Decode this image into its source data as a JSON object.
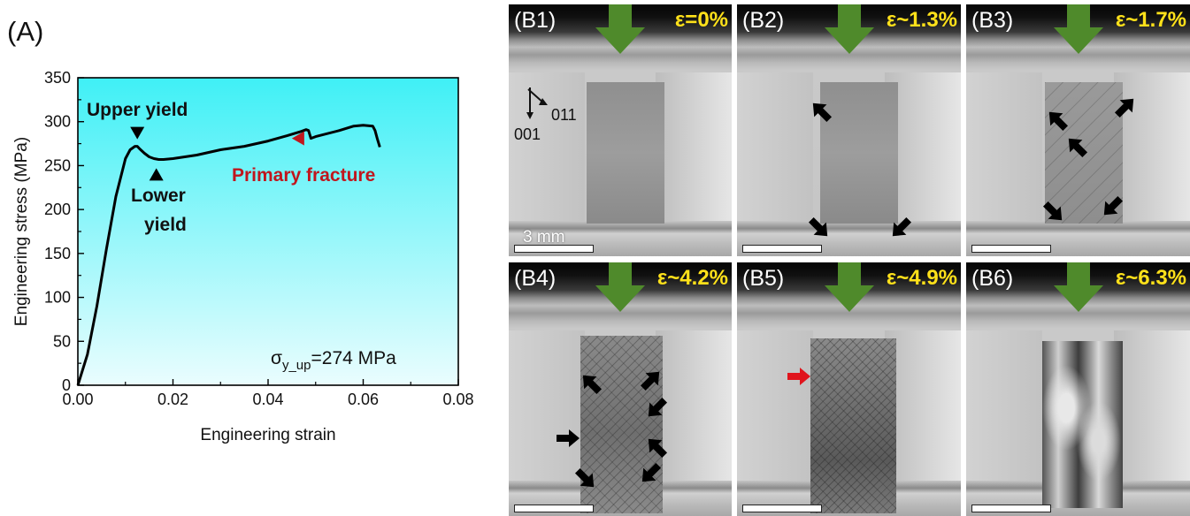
{
  "panel_a": {
    "label": "(A)",
    "annotations": {
      "upper_yield": "Upper yield",
      "lower_yield_1": "Lower",
      "lower_yield_2": "yield",
      "primary_fracture": "Primary fracture",
      "sigma_prefix": "σ",
      "sigma_sub": "y_up",
      "sigma_value": "=274 MPa"
    },
    "colors": {
      "curve": "#000000",
      "fracture": "#c0161d",
      "bg_top": "#3ff0f6",
      "bg_bottom": "#eafdfe"
    }
  },
  "chart_data": {
    "type": "line",
    "title": "",
    "xlabel": "Engineering strain",
    "ylabel": "Engineering stress (MPa)",
    "xlim": [
      0,
      0.08
    ],
    "ylim": [
      0,
      350
    ],
    "xticks": [
      "0.00",
      "0.02",
      "0.04",
      "0.06",
      "0.08"
    ],
    "yticks": [
      "0",
      "50",
      "100",
      "150",
      "200",
      "250",
      "300",
      "350"
    ],
    "grid": false,
    "series": [
      {
        "x": [
          0,
          0.002,
          0.004,
          0.006,
          0.008,
          0.01,
          0.011,
          0.012,
          0.0125,
          0.013,
          0.014,
          0.015,
          0.016,
          0.017,
          0.018,
          0.02,
          0.025,
          0.03,
          0.035,
          0.04,
          0.044,
          0.047,
          0.048,
          0.0485,
          0.049,
          0.05,
          0.055,
          0.058,
          0.06,
          0.062,
          0.0625,
          0.063,
          0.0635
        ],
        "y": [
          0,
          35,
          90,
          155,
          215,
          258,
          268,
          272,
          272,
          269,
          264,
          260,
          258,
          257,
          257,
          258,
          262,
          268,
          272,
          278,
          284,
          289,
          291,
          290,
          281,
          283,
          290,
          295,
          296,
          295,
          290,
          280,
          271
        ]
      }
    ],
    "markers": [
      {
        "name": "upper-yield",
        "x": 0.0125,
        "y": 287,
        "direction": "down",
        "color": "#000000"
      },
      {
        "name": "lower-yield",
        "x": 0.0165,
        "y": 240,
        "direction": "up",
        "color": "#000000"
      },
      {
        "name": "primary-fracture",
        "x": 0.0463,
        "y": 281,
        "direction": "left",
        "color": "#c0161d"
      }
    ]
  },
  "panels_b": [
    {
      "label": "(B1)",
      "strain": "ε=0%",
      "scale_text": "3 mm",
      "orientation": [
        "011",
        "001"
      ]
    },
    {
      "label": "(B2)",
      "strain": "ε~1.3%"
    },
    {
      "label": "(B3)",
      "strain": "ε~1.7%"
    },
    {
      "label": "(B4)",
      "strain": "ε~4.2%"
    },
    {
      "label": "(B5)",
      "strain": "ε~4.9%"
    },
    {
      "label": "(B6)",
      "strain": "ε~6.3%"
    }
  ],
  "colors": {
    "load_arrow": "#4f8a2b",
    "strain_text": "#ffe11a",
    "slip_arrow": "#000000",
    "fracture_arrow": "#e0141c"
  }
}
